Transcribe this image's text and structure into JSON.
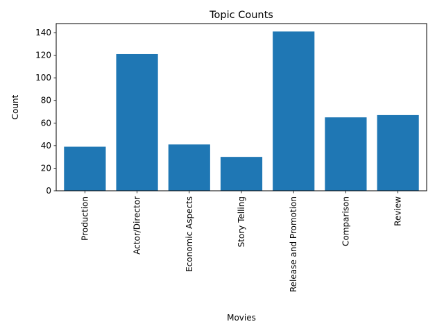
{
  "chart_data": {
    "type": "bar",
    "title": "Topic Counts",
    "xlabel": "Movies",
    "ylabel": "Count",
    "categories": [
      "Production",
      "Actor/Director",
      "Economic Aspects",
      "Story Telling",
      "Release and Promotion",
      "Comparison",
      "Review"
    ],
    "values": [
      39,
      121,
      41,
      30,
      141,
      65,
      67
    ],
    "ylim": [
      0,
      148
    ],
    "yticks": [
      0,
      20,
      40,
      60,
      80,
      100,
      120,
      140
    ],
    "bar_color": "#1f77b4",
    "grid": false,
    "legend": "none"
  }
}
